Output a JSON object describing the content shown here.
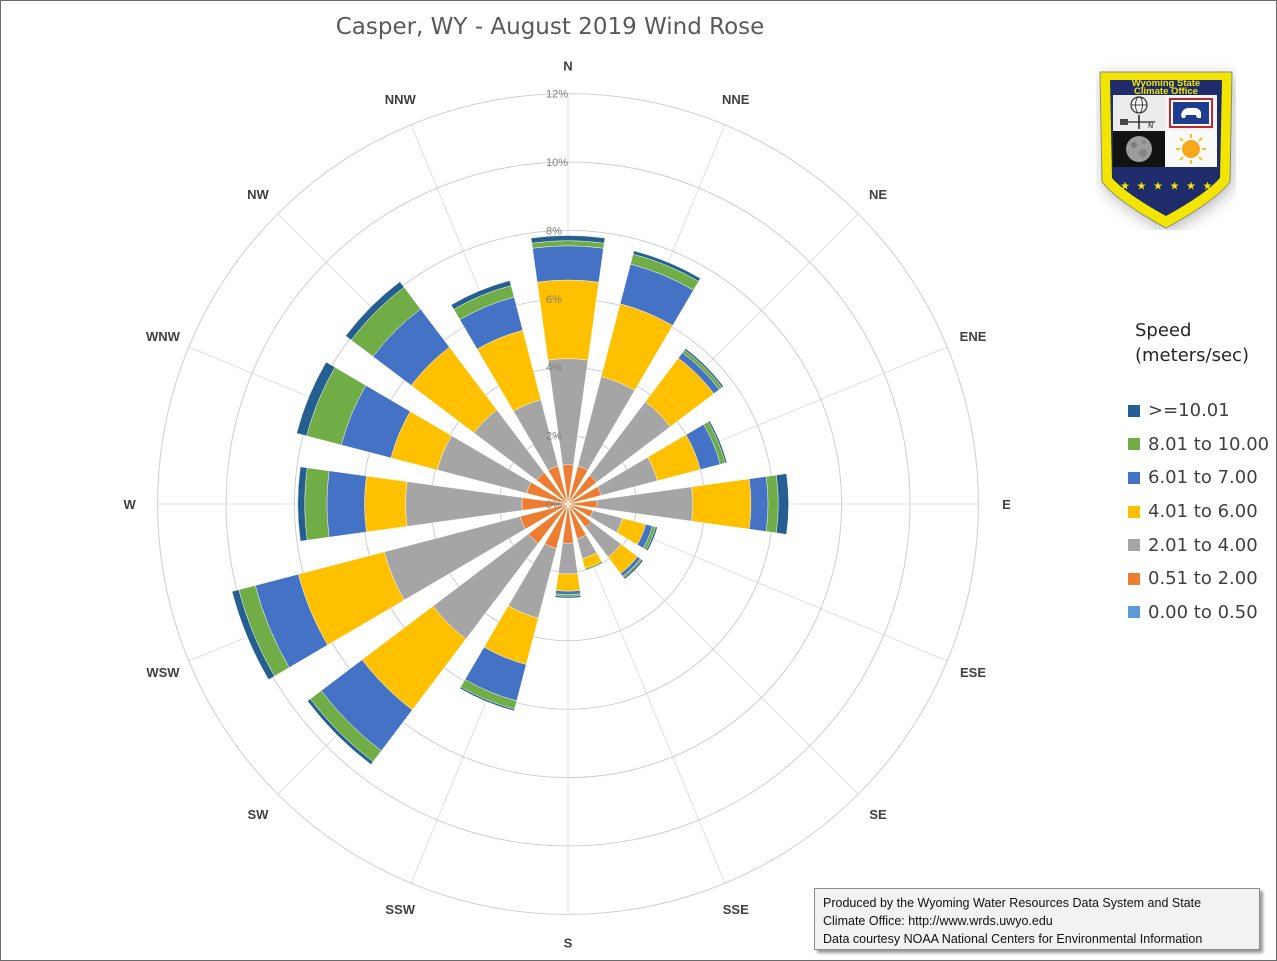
{
  "chart_data": {
    "type": "wind-rose",
    "title": "Casper, WY - August 2019 Wind Rose",
    "radial_axis": {
      "min": 0,
      "max": 12,
      "ticks": [
        "0%",
        "2%",
        "4%",
        "6%",
        "8%",
        "10%",
        "12%"
      ],
      "grid": true
    },
    "directions": [
      "N",
      "NNE",
      "NE",
      "ENE",
      "E",
      "ESE",
      "SE",
      "SSE",
      "S",
      "SSW",
      "SW",
      "WSW",
      "W",
      "WNW",
      "NW",
      "NNW"
    ],
    "legend": {
      "title": "Speed (meters/sec)",
      "title_lines": [
        "Speed",
        "(meters/sec)"
      ],
      "placement": "right"
    },
    "series": [
      {
        "name": "0.00 to 0.50",
        "color": "#5b9bd5",
        "values": [
          0.05,
          0.05,
          0.05,
          0.05,
          0.05,
          0.05,
          0.05,
          0.05,
          0.05,
          0.05,
          0.05,
          0.05,
          0.05,
          0.05,
          0.05,
          0.05
        ]
      },
      {
        "name": "0.51 to 2.00",
        "color": "#ed7d31",
        "values": [
          1.1,
          1.1,
          1.0,
          0.95,
          0.8,
          0.7,
          0.8,
          1.0,
          1.1,
          1.3,
          1.4,
          1.4,
          1.3,
          1.2,
          1.1,
          1.1
        ]
      },
      {
        "name": "2.01 to 4.00",
        "color": "#a5a5a5",
        "values": [
          3.1,
          2.7,
          2.7,
          1.7,
          2.8,
          0.9,
          1.1,
          0.6,
          0.9,
          2.1,
          3.5,
          4.1,
          3.4,
          2.7,
          2.3,
          2.0
        ]
      },
      {
        "name": "4.01 to 6.00",
        "color": "#ffc000",
        "values": [
          2.3,
          2.2,
          1.6,
          1.3,
          1.7,
          0.7,
          0.6,
          0.3,
          0.5,
          1.4,
          2.6,
          2.6,
          1.2,
          1.4,
          2.3,
          2.1
        ]
      },
      {
        "name": "6.01 to 7.00",
        "color": "#4472c4",
        "values": [
          1.0,
          1.2,
          0.2,
          0.6,
          0.5,
          0.2,
          0.1,
          0.0,
          0.1,
          1.1,
          1.5,
          1.3,
          1.1,
          1.5,
          1.4,
          1.0
        ]
      },
      {
        "name": "8.01 to 10.00",
        "color": "#70ad47",
        "values": [
          0.15,
          0.3,
          0.1,
          0.15,
          0.3,
          0.1,
          0.05,
          0.05,
          0.05,
          0.25,
          0.4,
          0.5,
          0.65,
          1.05,
          0.8,
          0.35
        ]
      },
      {
        "name": ">=10.01",
        "color": "#255e91",
        "values": [
          0.15,
          0.1,
          0.05,
          0.05,
          0.3,
          0.05,
          0.05,
          0.0,
          0.05,
          0.05,
          0.1,
          0.2,
          0.2,
          0.3,
          0.2,
          0.15
        ]
      }
    ],
    "legend_order": [
      ">=10.01",
      "8.01 to 10.00",
      "6.01 to 7.00",
      "4.01 to 6.00",
      "2.01 to 4.00",
      "0.51 to 2.00",
      "0.00 to 0.50"
    ]
  },
  "credits": {
    "line1": "Produced by the Wyoming Water Resources Data System and State",
    "line2": "Climate Office: http://www.wrds.uwyo.edu",
    "line3": "Data courtesy NOAA National Centers for Environmental Information"
  },
  "logo": {
    "text_line1": "Wyoming State",
    "text_line2": "Climate Office",
    "icons": [
      "globe-icon",
      "weather-vane-icon",
      "wyoming-flag-icon",
      "moon-icon",
      "sun-icon",
      "star-icon"
    ],
    "colors": {
      "border": "#f2e600",
      "banner": "#1f2c6b",
      "flag_blue": "#1f3d8f",
      "flag_red": "#c0262d"
    }
  }
}
